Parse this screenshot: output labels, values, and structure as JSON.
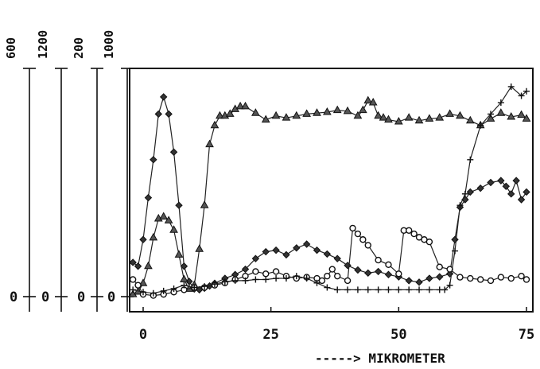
{
  "chart_data": {
    "type": "line",
    "xlabel": "-----> MIKROMETER",
    "xlim": [
      -2,
      75
    ],
    "xticks": [
      0,
      25,
      50,
      75
    ],
    "axes": [
      {
        "id": "a1",
        "top_label": "600",
        "bottom_label": "0",
        "range": [
          0,
          600
        ]
      },
      {
        "id": "a2",
        "top_label": "1200",
        "bottom_label": "0",
        "range": [
          0,
          1200
        ]
      },
      {
        "id": "a3",
        "top_label": "200",
        "bottom_label": "0",
        "range": [
          0,
          200
        ]
      },
      {
        "id": "a4",
        "top_label": "1000",
        "bottom_label": "0",
        "range": [
          0,
          1000
        ]
      }
    ],
    "series": [
      {
        "marker": "diamond",
        "axis": "a1",
        "x": [
          -2,
          -1,
          0,
          1,
          2,
          3,
          4,
          5,
          6,
          7,
          8,
          9,
          10,
          11,
          12,
          13,
          14,
          16,
          18,
          20,
          22,
          24,
          26,
          28,
          30,
          32,
          34,
          36,
          38,
          40,
          42,
          44,
          46,
          48,
          50,
          52,
          54,
          56,
          58,
          60,
          61,
          62,
          63,
          64,
          66,
          68,
          70,
          71,
          72,
          73,
          74,
          75
        ],
        "y": [
          90,
          80,
          150,
          260,
          360,
          480,
          525,
          480,
          380,
          240,
          80,
          40,
          20,
          18,
          22,
          28,
          35,
          48,
          58,
          72,
          100,
          118,
          122,
          110,
          128,
          138,
          122,
          112,
          100,
          82,
          70,
          62,
          66,
          58,
          52,
          42,
          38,
          48,
          52,
          60,
          150,
          235,
          255,
          275,
          285,
          300,
          305,
          290,
          270,
          305,
          255,
          275
        ]
      },
      {
        "marker": "triangle",
        "axis": "a2",
        "x": [
          -2,
          -1,
          0,
          1,
          2,
          3,
          4,
          5,
          6,
          7,
          8,
          9,
          10,
          11,
          12,
          13,
          14,
          15,
          16,
          17,
          18,
          19,
          20,
          22,
          24,
          26,
          28,
          30,
          32,
          34,
          36,
          38,
          40,
          42,
          43,
          44,
          45,
          46,
          47,
          48,
          50,
          52,
          54,
          56,
          58,
          60,
          62,
          64,
          66,
          68,
          70,
          72,
          74,
          75
        ],
        "y": [
          12,
          25,
          70,
          160,
          310,
          410,
          420,
          400,
          350,
          220,
          90,
          40,
          60,
          250,
          480,
          800,
          900,
          950,
          950,
          960,
          985,
          1000,
          1000,
          965,
          930,
          950,
          940,
          950,
          960,
          965,
          970,
          980,
          975,
          950,
          980,
          1030,
          1020,
          950,
          940,
          930,
          920,
          940,
          925,
          935,
          940,
          960,
          950,
          925,
          900,
          935,
          965,
          945,
          955,
          935
        ]
      },
      {
        "marker": "circle",
        "axis": "a3",
        "x": [
          -2,
          -1,
          0,
          2,
          4,
          6,
          8,
          10,
          12,
          14,
          16,
          18,
          20,
          22,
          24,
          26,
          28,
          30,
          32,
          34,
          35,
          36,
          37,
          38,
          40,
          41,
          42,
          43,
          44,
          46,
          48,
          50,
          51,
          52,
          53,
          54,
          55,
          56,
          58,
          60,
          62,
          64,
          66,
          68,
          70,
          72,
          74,
          75
        ],
        "y": [
          15,
          10,
          2,
          1,
          2,
          4,
          6,
          8,
          8,
          10,
          12,
          15,
          18,
          22,
          20,
          22,
          18,
          16,
          17,
          16,
          14,
          18,
          24,
          18,
          14,
          60,
          55,
          50,
          45,
          32,
          28,
          20,
          58,
          58,
          55,
          52,
          50,
          48,
          26,
          24,
          17,
          16,
          15,
          14,
          17,
          16,
          18,
          15
        ]
      },
      {
        "marker": "plus",
        "axis": "a4",
        "x": [
          -2,
          0,
          2,
          4,
          6,
          8,
          10,
          12,
          14,
          16,
          18,
          20,
          22,
          24,
          26,
          28,
          30,
          32,
          34,
          36,
          38,
          40,
          42,
          44,
          46,
          48,
          50,
          52,
          54,
          56,
          58,
          59,
          60,
          61,
          62,
          63,
          64,
          66,
          68,
          70,
          72,
          74,
          75
        ],
        "y": [
          30,
          20,
          15,
          25,
          35,
          50,
          40,
          45,
          55,
          65,
          70,
          70,
          75,
          75,
          80,
          80,
          90,
          80,
          60,
          40,
          30,
          30,
          30,
          30,
          30,
          30,
          30,
          30,
          30,
          30,
          30,
          30,
          50,
          200,
          400,
          450,
          600,
          750,
          800,
          850,
          920,
          880,
          900
        ]
      }
    ]
  }
}
